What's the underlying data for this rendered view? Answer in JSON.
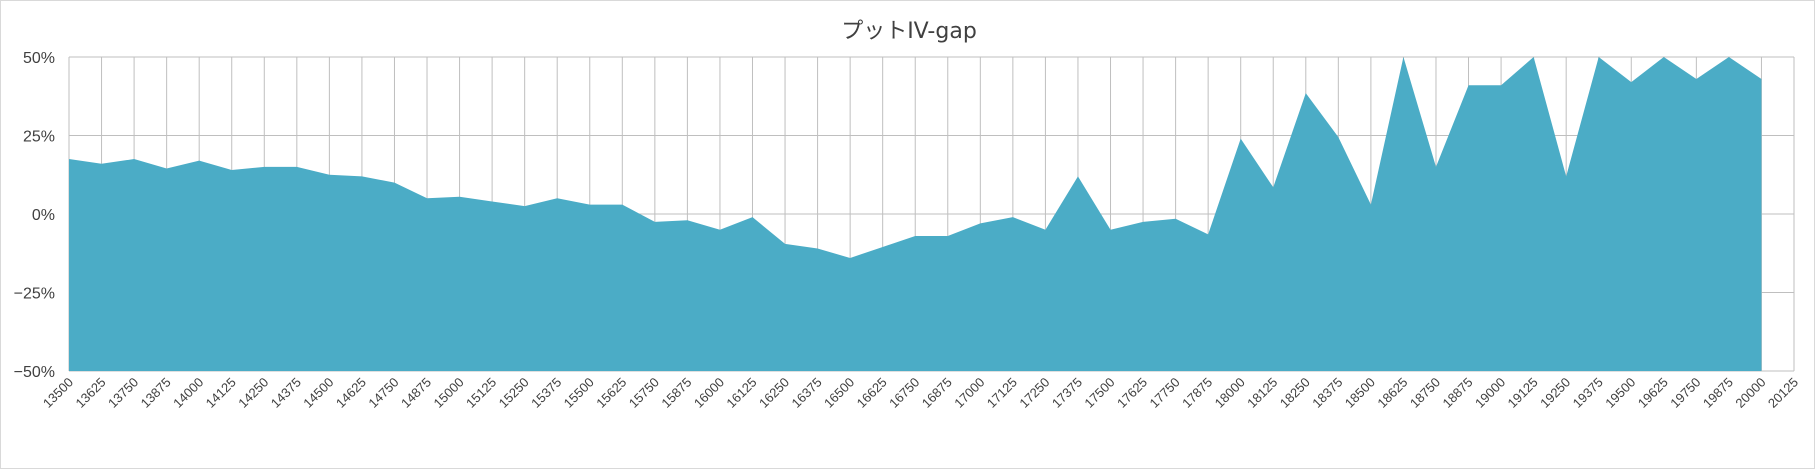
{
  "chart_data": {
    "type": "area",
    "title": "プットIV-gap",
    "xlabel": "",
    "ylabel": "",
    "ylim": [
      -0.5,
      0.5
    ],
    "y_tick_values": [
      0.5,
      0.25,
      0,
      -0.25,
      -0.5
    ],
    "y_tick_labels": [
      "50%",
      "25%",
      "0%",
      "−25%",
      "−50%"
    ],
    "x_tick_labels": [
      "13500",
      "13625",
      "13750",
      "13875",
      "14000",
      "14125",
      "14250",
      "14375",
      "14500",
      "14625",
      "14750",
      "14875",
      "15000",
      "15125",
      "15250",
      "15375",
      "15500",
      "15625",
      "15750",
      "15875",
      "16000",
      "16125",
      "16250",
      "16375",
      "16500",
      "16625",
      "16750",
      "16875",
      "17000",
      "17125",
      "17250",
      "17375",
      "17500",
      "17625",
      "17750",
      "17875",
      "18000",
      "18125",
      "18250",
      "18375",
      "18500",
      "18625",
      "18750",
      "18875",
      "19000",
      "19125",
      "19250",
      "19375",
      "19500",
      "19625",
      "19750",
      "19875",
      "20000",
      "20125"
    ],
    "grid": true,
    "series": [
      {
        "color": "#4BACC6",
        "x": [
          13500,
          13625,
          13750,
          13875,
          14000,
          14125,
          14250,
          14375,
          14500,
          14625,
          14750,
          14875,
          15000,
          15125,
          15250,
          15375,
          15500,
          15625,
          15750,
          15875,
          16000,
          16125,
          16250,
          16375,
          16500,
          16625,
          16750,
          16875,
          17000,
          17125,
          17250,
          17375,
          17500,
          17625,
          17750,
          17875,
          18000,
          18125,
          18250,
          18375,
          18500,
          18625,
          18750,
          18875,
          19000,
          19125,
          19250,
          19375,
          19500,
          19625,
          19750,
          19875,
          20000
        ],
        "values": [
          0.175,
          0.16,
          0.175,
          0.145,
          0.17,
          0.14,
          0.15,
          0.15,
          0.125,
          0.12,
          0.1,
          0.05,
          0.055,
          0.04,
          0.025,
          0.05,
          0.03,
          0.03,
          -0.025,
          -0.02,
          -0.05,
          -0.01,
          -0.095,
          -0.11,
          -0.14,
          -0.105,
          -0.07,
          -0.07,
          -0.03,
          -0.01,
          -0.05,
          0.12,
          -0.05,
          -0.025,
          -0.015,
          -0.065,
          0.24,
          0.085,
          0.385,
          0.245,
          0.03,
          0.5,
          0.15,
          0.41,
          0.41,
          0.5,
          0.12,
          0.5,
          0.42,
          0.5,
          0.43,
          0.5,
          0.43
        ]
      }
    ]
  }
}
